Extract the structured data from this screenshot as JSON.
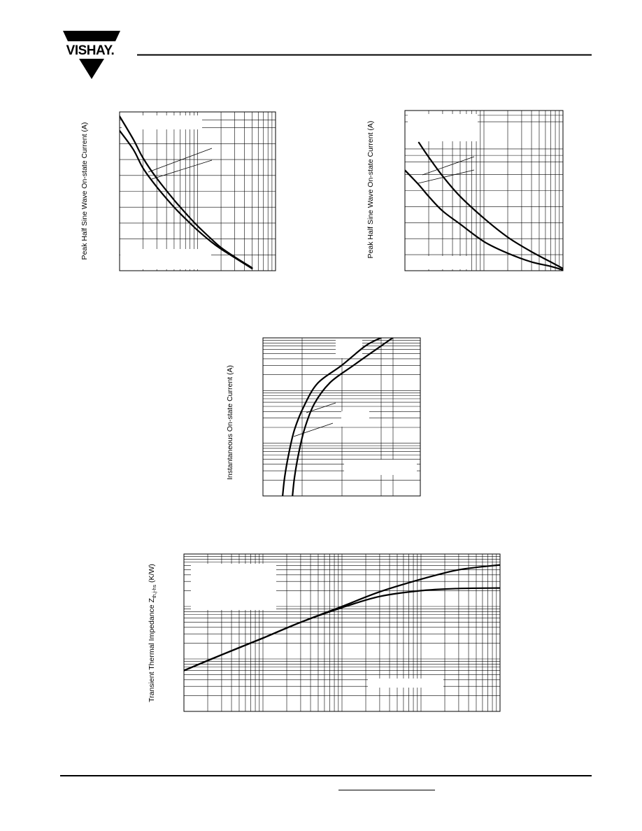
{
  "header": {
    "logo_text": "VISHAY."
  },
  "chart_data": [
    {
      "type": "line",
      "log_x": true,
      "xlim": [
        1,
        100
      ],
      "ylim": [
        0,
        11
      ],
      "grid": true,
      "ylabel": "Peak Half Sine Wave On-state Current (A)",
      "series": [
        {
          "x": [
            1,
            1.5,
            2,
            3,
            5,
            7,
            10,
            15,
            20,
            30,
            50
          ],
          "values": [
            10.7,
            9.1,
            7.8,
            6.4,
            4.9,
            4.0,
            3.1,
            2.2,
            1.6,
            0.95,
            0.2
          ]
        },
        {
          "x": [
            1,
            1.5,
            2,
            3,
            5,
            7,
            10,
            15,
            20,
            30,
            50
          ],
          "values": [
            9.7,
            8.4,
            7.1,
            5.8,
            4.4,
            3.6,
            2.8,
            2.0,
            1.5,
            0.9,
            0.15
          ]
        }
      ]
    },
    {
      "type": "line",
      "log_x": true,
      "xlim": [
        1,
        100
      ],
      "ylim": [
        0,
        11
      ],
      "grid": true,
      "ylabel": "Peak Half Sine Wave On-state Current (A)",
      "series": [
        {
          "x": [
            1.5,
            2,
            3,
            5,
            10,
            20,
            40,
            70,
            100
          ],
          "values": [
            8.8,
            7.8,
            6.5,
            5.1,
            3.6,
            2.3,
            1.3,
            0.6,
            0.15
          ]
        },
        {
          "x": [
            1,
            1.5,
            2,
            3,
            5,
            10,
            20,
            40,
            70,
            100
          ],
          "values": [
            6.9,
            5.9,
            5.1,
            4.1,
            3.2,
            2.0,
            1.2,
            0.6,
            0.3,
            0.05
          ]
        }
      ]
    },
    {
      "type": "line",
      "log_y": true,
      "xlim": [
        0,
        4
      ],
      "ylim": [
        0.1,
        100
      ],
      "grid": true,
      "ylabel": "Instantaneous On-state Current (A)",
      "series": [
        {
          "x": [
            0.5,
            0.55,
            0.65,
            0.8,
            1.05,
            1.4,
            2.0,
            2.6,
            3.0
          ],
          "values": [
            0.1,
            0.22,
            0.6,
            1.8,
            5.2,
            14,
            30,
            70,
            100
          ]
        },
        {
          "x": [
            0.75,
            0.8,
            0.9,
            1.05,
            1.3,
            1.7,
            2.3,
            3.0,
            3.3
          ],
          "values": [
            0.1,
            0.22,
            0.6,
            1.8,
            5.5,
            14,
            30,
            70,
            100
          ]
        }
      ]
    },
    {
      "type": "line",
      "log_x": true,
      "log_y": true,
      "xlim": [
        0.001,
        10
      ],
      "ylim": [
        0.1,
        100
      ],
      "grid": true,
      "ylabel": "Transient Thermal Impedance Z",
      "ylabel_sub": "th,j-hs",
      "ylabel_unit": "(K/W)",
      "series": [
        {
          "x": [
            0.001,
            0.003,
            0.01,
            0.03,
            0.1,
            0.3,
            1,
            3,
            10
          ],
          "values": [
            0.6,
            1.2,
            2.5,
            5,
            10,
            19,
            33,
            50,
            62
          ]
        },
        {
          "x": [
            0.001,
            0.003,
            0.01,
            0.03,
            0.1,
            0.3,
            1,
            3,
            10
          ],
          "values": [
            0.6,
            1.2,
            2.5,
            5,
            9.5,
            15.5,
            20,
            22,
            22.5
          ]
        }
      ]
    }
  ]
}
